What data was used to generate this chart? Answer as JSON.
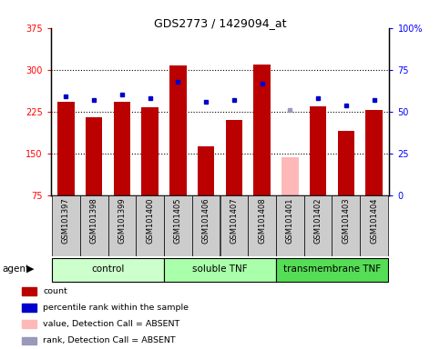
{
  "title": "GDS2773 / 1429094_at",
  "samples": [
    "GSM101397",
    "GSM101398",
    "GSM101399",
    "GSM101400",
    "GSM101405",
    "GSM101406",
    "GSM101407",
    "GSM101408",
    "GSM101401",
    "GSM101402",
    "GSM101403",
    "GSM101404"
  ],
  "bar_values": [
    242,
    215,
    243,
    233,
    308,
    163,
    210,
    310,
    143,
    235,
    190,
    228
  ],
  "bar_colors": [
    "#bb0000",
    "#bb0000",
    "#bb0000",
    "#bb0000",
    "#bb0000",
    "#bb0000",
    "#bb0000",
    "#bb0000",
    "#ffb8b8",
    "#bb0000",
    "#bb0000",
    "#bb0000"
  ],
  "dot_values_pct": [
    59,
    57,
    60,
    58,
    68,
    56,
    57,
    67,
    51,
    58,
    54,
    57
  ],
  "dot_colors": [
    "#0000cc",
    "#0000cc",
    "#0000cc",
    "#0000cc",
    "#0000cc",
    "#0000cc",
    "#0000cc",
    "#0000cc",
    "#9999bb",
    "#0000cc",
    "#0000cc",
    "#0000cc"
  ],
  "ylim_left": [
    75,
    375
  ],
  "ylim_right": [
    0,
    100
  ],
  "yticks_left": [
    75,
    150,
    225,
    300,
    375
  ],
  "ytick_labels_left": [
    "75",
    "150",
    "225",
    "300",
    "375"
  ],
  "ytick_labels_right": [
    "0",
    "25",
    "50",
    "75",
    "100%"
  ],
  "groups": [
    {
      "label": "control",
      "start": 0,
      "end": 4
    },
    {
      "label": "soluble TNF",
      "start": 4,
      "end": 8
    },
    {
      "label": "transmembrane TNF",
      "start": 8,
      "end": 12
    }
  ],
  "group_colors": [
    "#ccffcc",
    "#aaffaa",
    "#55dd55"
  ],
  "agent_label": "agent",
  "legend_items": [
    {
      "color": "#bb0000",
      "label": "count"
    },
    {
      "color": "#0000cc",
      "label": "percentile rank within the sample"
    },
    {
      "color": "#ffb8b8",
      "label": "value, Detection Call = ABSENT"
    },
    {
      "color": "#9999bb",
      "label": "rank, Detection Call = ABSENT"
    }
  ]
}
